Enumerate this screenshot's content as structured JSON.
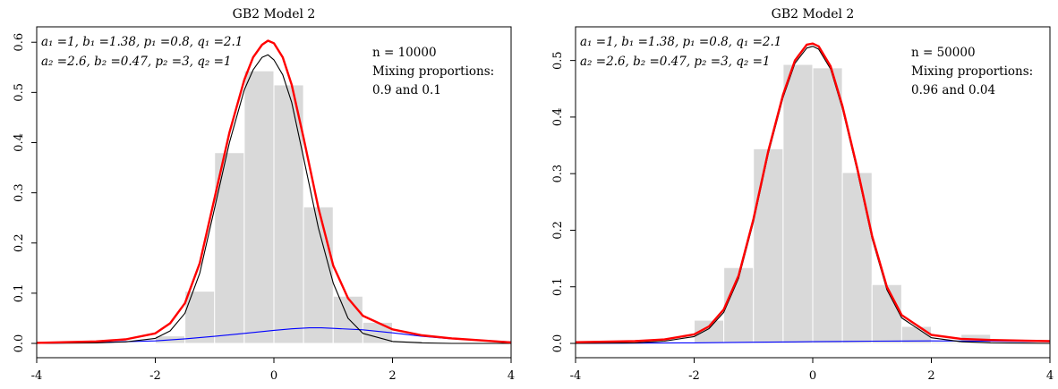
{
  "chart_data": [
    {
      "type": "bar",
      "title": "GB2 Model 2",
      "xlabel": "",
      "ylabel": "",
      "xlim": [
        -4,
        4
      ],
      "ylim": [
        0,
        0.62
      ],
      "xticks": [
        "-4",
        "-2",
        "0",
        "2",
        "4"
      ],
      "yticks": [
        "0.0",
        "0.1",
        "0.2",
        "0.3",
        "0.4",
        "0.5",
        "0.6"
      ],
      "params_line1": "a₁ =1, b₁ =1.38, p₁ =0.8, q₁ =2.1",
      "params_line2": "a₂ =2.6, b₂ =0.47, p₂ =3, q₂ =1",
      "n_text": "n = 10000",
      "mix_label": "Mixing proportions:",
      "mix_values": "0.9 and 0.1",
      "bin_edges": [
        -2.0,
        -1.5,
        -1.0,
        -0.5,
        0.0,
        0.5,
        1.0,
        1.5,
        2.0,
        2.5
      ],
      "bin_values": [
        0.015,
        0.104,
        0.38,
        0.543,
        0.515,
        0.272,
        0.094,
        0.042,
        0.005
      ],
      "curves": {
        "mixture": {
          "color": "#ff0000",
          "x": [
            -4,
            -3,
            -2.5,
            -2,
            -1.75,
            -1.5,
            -1.25,
            -1,
            -0.75,
            -0.5,
            -0.35,
            -0.2,
            -0.1,
            0,
            0.15,
            0.3,
            0.5,
            0.75,
            1,
            1.25,
            1.5,
            2,
            2.5,
            3,
            4
          ],
          "y": [
            0.001,
            0.004,
            0.008,
            0.02,
            0.04,
            0.08,
            0.16,
            0.29,
            0.42,
            0.525,
            0.57,
            0.595,
            0.603,
            0.598,
            0.57,
            0.515,
            0.41,
            0.27,
            0.155,
            0.09,
            0.055,
            0.028,
            0.016,
            0.01,
            0.002
          ]
        },
        "component1": {
          "color": "#000000",
          "x": [
            -4,
            -3,
            -2.5,
            -2,
            -1.75,
            -1.5,
            -1.25,
            -1,
            -0.75,
            -0.5,
            -0.35,
            -0.2,
            -0.1,
            0,
            0.15,
            0.3,
            0.5,
            0.75,
            1,
            1.25,
            1.5,
            2,
            2.5,
            3,
            4
          ],
          "y": [
            0.0,
            0.001,
            0.003,
            0.01,
            0.025,
            0.06,
            0.14,
            0.27,
            0.4,
            0.505,
            0.545,
            0.57,
            0.575,
            0.565,
            0.535,
            0.48,
            0.37,
            0.23,
            0.12,
            0.05,
            0.02,
            0.004,
            0.001,
            0.0,
            0.0
          ]
        },
        "component2": {
          "color": "#0000ff",
          "x": [
            -4,
            -3,
            -2,
            -1.5,
            -1,
            -0.5,
            0,
            0.3,
            0.6,
            0.8,
            1,
            1.5,
            2,
            2.5,
            3,
            4
          ],
          "y": [
            0.0,
            0.002,
            0.005,
            0.009,
            0.014,
            0.02,
            0.026,
            0.029,
            0.031,
            0.031,
            0.03,
            0.027,
            0.021,
            0.014,
            0.009,
            0.003
          ]
        }
      }
    },
    {
      "type": "bar",
      "title": "GB2 Model 2",
      "xlabel": "",
      "ylabel": "",
      "xlim": [
        -4,
        4
      ],
      "ylim": [
        0,
        0.55
      ],
      "xticks": [
        "-4",
        "-2",
        "0",
        "2",
        "4"
      ],
      "yticks": [
        "0.0",
        "0.1",
        "0.2",
        "0.3",
        "0.4",
        "0.5"
      ],
      "params_line1": "a₁ =1, b₁ =1.38, p₁ =0.8, q₁ =2.1",
      "params_line2": "a₂ =2.6, b₂ =0.47, p₂ =3, q₂ =1",
      "n_text": "n = 50000",
      "mix_label": "Mixing proportions:",
      "mix_values": "0.96 and 0.04",
      "bin_edges": [
        -2.5,
        -2.0,
        -1.5,
        -1.0,
        -0.5,
        0.0,
        0.5,
        1.0,
        1.5,
        2.0,
        2.5,
        3.0
      ],
      "bin_values": [
        0.002,
        0.041,
        0.134,
        0.344,
        0.493,
        0.487,
        0.302,
        0.104,
        0.03,
        0.003,
        0.016
      ],
      "curves": {
        "mixture": {
          "color": "#ff0000",
          "x": [
            -4,
            -3,
            -2.5,
            -2,
            -1.75,
            -1.5,
            -1.25,
            -1,
            -0.75,
            -0.5,
            -0.3,
            -0.1,
            0,
            0.1,
            0.3,
            0.5,
            0.75,
            1,
            1.25,
            1.5,
            2,
            2.5,
            3,
            4
          ],
          "y": [
            0.002,
            0.004,
            0.007,
            0.016,
            0.03,
            0.06,
            0.12,
            0.22,
            0.34,
            0.44,
            0.5,
            0.528,
            0.53,
            0.525,
            0.49,
            0.42,
            0.31,
            0.19,
            0.1,
            0.05,
            0.015,
            0.008,
            0.006,
            0.004
          ]
        },
        "component1": {
          "color": "#000000",
          "x": [
            -4,
            -3,
            -2.5,
            -2,
            -1.75,
            -1.5,
            -1.25,
            -1,
            -0.75,
            -0.5,
            -0.3,
            -0.1,
            0,
            0.1,
            0.3,
            0.5,
            0.75,
            1,
            1.25,
            1.5,
            2,
            2.5,
            3,
            4
          ],
          "y": [
            0.0,
            0.001,
            0.004,
            0.012,
            0.026,
            0.055,
            0.115,
            0.215,
            0.335,
            0.435,
            0.495,
            0.522,
            0.525,
            0.52,
            0.485,
            0.415,
            0.305,
            0.185,
            0.095,
            0.045,
            0.01,
            0.003,
            0.001,
            0.0
          ]
        },
        "component2": {
          "color": "#0000ff",
          "x": [
            -4,
            -3,
            -2,
            -1,
            0,
            0.5,
            1,
            2,
            3,
            4
          ],
          "y": [
            0.0,
            0.0005,
            0.001,
            0.002,
            0.003,
            0.0035,
            0.004,
            0.0045,
            0.004,
            0.003
          ]
        }
      }
    }
  ]
}
